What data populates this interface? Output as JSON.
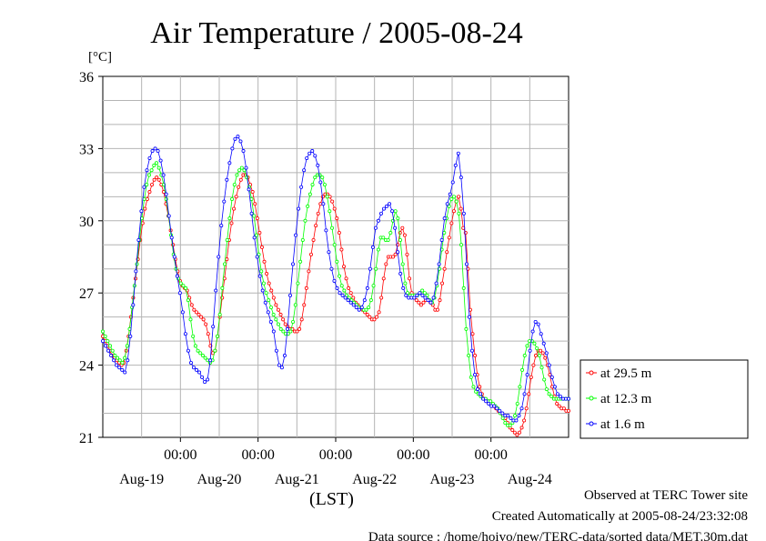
{
  "chart_data": {
    "type": "line",
    "title": "Air Temperature / 2005-08-24",
    "y_unit": "[°C]",
    "xlabel": "(LST)",
    "ylim": [
      21,
      36
    ],
    "y_ticks": [
      "21",
      "24",
      "27",
      "30",
      "33",
      "36"
    ],
    "x_time_ticks": [
      "00:00",
      "00:00",
      "00:00",
      "00:00",
      "00:00"
    ],
    "x_day_labels": [
      "Aug-19",
      "Aug-20",
      "Aug-21",
      "Aug-22",
      "Aug-23",
      "Aug-24"
    ],
    "x_range_hours": [
      0,
      144
    ],
    "x_interval_hours": 0.5,
    "grid": true,
    "legend_position": "right",
    "series": [
      {
        "name": "at 29.5 m",
        "color": "#ff0000",
        "y": [
          25.2,
          25.0,
          24.8,
          24.6,
          24.4,
          24.3,
          24.2,
          24.1,
          24.0,
          24.1,
          24.6,
          25.2,
          26.0,
          26.8,
          27.6,
          28.4,
          29.2,
          29.9,
          30.5,
          30.9,
          31.2,
          31.5,
          31.7,
          31.8,
          31.7,
          31.5,
          31.2,
          30.7,
          30.2,
          29.6,
          29.0,
          28.4,
          27.9,
          27.5,
          27.3,
          27.2,
          27.1,
          26.8,
          26.5,
          26.3,
          26.2,
          26.1,
          26.0,
          25.9,
          25.7,
          25.3,
          24.8,
          24.5,
          24.6,
          25.2,
          26.0,
          26.8,
          27.6,
          28.4,
          29.2,
          29.9,
          30.5,
          31.0,
          31.4,
          31.7,
          31.9,
          31.9,
          31.8,
          31.5,
          31.2,
          30.7,
          30.1,
          29.5,
          28.9,
          28.3,
          27.8,
          27.4,
          27.1,
          26.8,
          26.5,
          26.3,
          26.1,
          25.9,
          25.7,
          25.6,
          25.5,
          25.5,
          25.4,
          25.4,
          25.5,
          25.9,
          26.5,
          27.2,
          27.9,
          28.6,
          29.2,
          29.8,
          30.3,
          30.7,
          31.0,
          31.1,
          31.1,
          31.0,
          30.8,
          30.5,
          30.1,
          29.5,
          28.8,
          28.1,
          27.6,
          27.2,
          27.0,
          26.8,
          26.6,
          26.5,
          26.4,
          26.3,
          26.2,
          26.1,
          26.0,
          25.9,
          25.9,
          26.0,
          26.2,
          26.8,
          27.6,
          28.2,
          28.5,
          28.5,
          28.5,
          28.6,
          29.0,
          29.5,
          29.7,
          29.4,
          28.6,
          27.6,
          27.0,
          26.8,
          26.7,
          26.6,
          26.5,
          26.6,
          26.7,
          26.7,
          26.6,
          26.5,
          26.3,
          26.3,
          26.7,
          27.4,
          28.0,
          28.7,
          29.3,
          29.9,
          30.4,
          30.8,
          31.0,
          30.5,
          29.7,
          29.5,
          28.0,
          26.3,
          25.3,
          24.4,
          23.6,
          23.1,
          22.8,
          22.6,
          22.5,
          22.5,
          22.4,
          22.3,
          22.2,
          22.1,
          22.0,
          21.9,
          21.8,
          21.6,
          21.4,
          21.3,
          21.2,
          21.1,
          21.2,
          21.4,
          21.7,
          22.2,
          22.8,
          23.5,
          24.0,
          24.4,
          24.6,
          24.6,
          24.5,
          24.3,
          24.0,
          23.6,
          23.1,
          22.7,
          22.4,
          22.3,
          22.2,
          22.2,
          22.1,
          22.1
        ]
      },
      {
        "name": "at 12.3 m",
        "color": "#00ff00",
        "y": [
          25.4,
          25.2,
          25.0,
          24.8,
          24.6,
          24.4,
          24.3,
          24.2,
          24.1,
          24.3,
          24.8,
          25.5,
          26.4,
          27.3,
          28.2,
          29.2,
          30.1,
          30.9,
          31.5,
          31.9,
          32.1,
          32.3,
          32.4,
          32.2,
          31.9,
          31.5,
          30.9,
          30.2,
          29.4,
          28.6,
          28.0,
          27.6,
          27.4,
          27.3,
          27.2,
          26.7,
          25.9,
          25.2,
          24.8,
          24.6,
          24.5,
          24.4,
          24.3,
          24.2,
          24.1,
          24.2,
          24.6,
          25.2,
          26.1,
          27.2,
          28.2,
          29.2,
          30.1,
          30.9,
          31.5,
          31.9,
          32.1,
          32.2,
          32.1,
          31.8,
          31.4,
          30.9,
          30.2,
          29.4,
          28.6,
          27.9,
          27.4,
          27.0,
          26.7,
          26.4,
          26.1,
          25.9,
          25.7,
          25.5,
          25.4,
          25.3,
          25.3,
          25.4,
          25.8,
          26.5,
          27.4,
          28.3,
          29.2,
          30.0,
          30.6,
          31.1,
          31.5,
          31.8,
          31.9,
          31.9,
          31.8,
          31.5,
          31.0,
          30.4,
          29.7,
          29.0,
          28.3,
          27.7,
          27.3,
          27.1,
          26.9,
          26.8,
          26.7,
          26.6,
          26.5,
          26.4,
          26.4,
          26.3,
          26.3,
          26.4,
          26.7,
          27.3,
          28.0,
          28.8,
          29.3,
          29.3,
          29.2,
          29.2,
          29.5,
          30.0,
          30.4,
          30.1,
          29.2,
          28.2,
          27.4,
          27.0,
          26.9,
          26.9,
          26.9,
          26.9,
          27.0,
          27.1,
          27.0,
          26.9,
          26.7,
          26.6,
          26.8,
          27.3,
          28.0,
          28.8,
          29.5,
          30.1,
          30.6,
          30.9,
          31.0,
          30.8,
          30.3,
          29.0,
          27.2,
          25.5,
          24.4,
          23.5,
          23.1,
          22.9,
          22.8,
          22.7,
          22.6,
          22.6,
          22.5,
          22.5,
          22.4,
          22.3,
          22.2,
          22.0,
          21.8,
          21.6,
          21.5,
          21.5,
          21.6,
          21.9,
          22.4,
          23.1,
          23.8,
          24.4,
          24.8,
          25.0,
          25.0,
          24.9,
          24.7,
          24.4,
          23.9,
          23.4,
          23.0,
          22.8,
          22.7,
          22.6,
          22.6,
          22.6,
          22.6,
          22.6,
          22.6,
          22.6
        ]
      },
      {
        "name": "at 1.6 m",
        "color": "#0000ff",
        "y": [
          25.0,
          24.8,
          24.6,
          24.4,
          24.2,
          24.0,
          23.9,
          23.8,
          23.7,
          24.2,
          25.2,
          26.5,
          27.9,
          29.2,
          30.4,
          31.4,
          32.1,
          32.6,
          32.9,
          33.0,
          32.9,
          32.5,
          31.9,
          31.1,
          30.2,
          29.3,
          28.5,
          27.7,
          27.0,
          26.2,
          25.3,
          24.6,
          24.1,
          23.9,
          23.8,
          23.7,
          23.5,
          23.3,
          23.4,
          24.2,
          25.6,
          27.1,
          28.5,
          29.8,
          30.8,
          31.7,
          32.4,
          33.0,
          33.4,
          33.5,
          33.3,
          32.9,
          32.2,
          31.3,
          30.3,
          29.3,
          28.5,
          27.7,
          27.1,
          26.6,
          26.2,
          25.8,
          25.4,
          24.6,
          24.0,
          23.9,
          24.4,
          25.5,
          26.9,
          28.2,
          29.4,
          30.5,
          31.4,
          32.1,
          32.6,
          32.8,
          32.9,
          32.7,
          32.3,
          31.6,
          30.7,
          29.6,
          28.7,
          28.0,
          27.5,
          27.2,
          27.0,
          26.9,
          26.8,
          26.7,
          26.6,
          26.5,
          26.4,
          26.3,
          26.4,
          26.7,
          27.2,
          28.0,
          28.9,
          29.7,
          30.0,
          30.3,
          30.5,
          30.6,
          30.7,
          30.4,
          29.7,
          28.7,
          27.8,
          27.2,
          26.9,
          26.8,
          26.8,
          26.8,
          26.9,
          27.0,
          26.9,
          26.8,
          26.7,
          26.6,
          26.8,
          27.4,
          28.2,
          29.2,
          30.1,
          30.7,
          31.1,
          31.6,
          32.3,
          32.8,
          31.8,
          30.3,
          28.2,
          26.0,
          24.6,
          23.6,
          23.0,
          22.8,
          22.6,
          22.5,
          22.4,
          22.3,
          22.3,
          22.2,
          22.1,
          22.0,
          21.9,
          21.9,
          21.8,
          21.7,
          21.7,
          21.9,
          22.2,
          22.8,
          23.6,
          24.6,
          25.4,
          25.8,
          25.7,
          25.3,
          24.9,
          24.5,
          24.0,
          23.5,
          23.1,
          22.8,
          22.7,
          22.6,
          22.6,
          22.6
        ]
      }
    ]
  },
  "footer": {
    "line1": "Observed at TERC Tower site",
    "line2": "Created Automatically at 2005-08-24/23:32:08",
    "line3": "Data source : /home/hoivo/new/TERC-data/sorted  data/MET.30m.dat"
  }
}
